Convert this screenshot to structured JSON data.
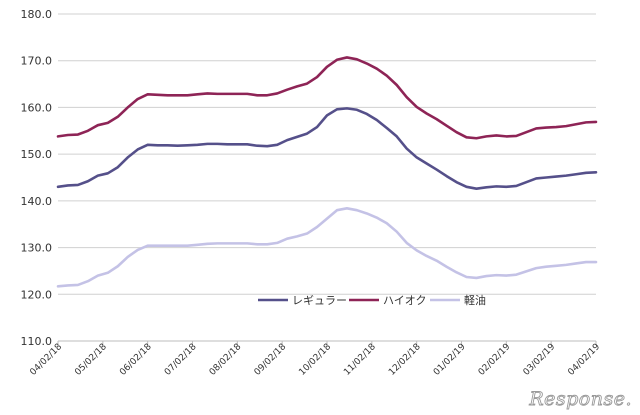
{
  "chart_data": {
    "type": "line",
    "title": "",
    "xlabel": "",
    "ylabel": "",
    "ylim": [
      110.0,
      180.0
    ],
    "yticks": [
      "110.0",
      "120.0",
      "130.0",
      "140.0",
      "150.0",
      "160.0",
      "170.0",
      "180.0"
    ],
    "xtick_labels": [
      "04/02/18",
      "05/02/18",
      "06/02/18",
      "07/02/18",
      "08/02/18",
      "09/02/18",
      "10/02/18",
      "11/02/18",
      "12/02/18",
      "01/02/19",
      "02/02/19",
      "03/02/19",
      "04/02/19"
    ],
    "grid": true,
    "legend_position": "bottom-center",
    "series": [
      {
        "name": "レギュラー",
        "color": "#55508a",
        "values": [
          143.0,
          143.3,
          143.4,
          144.2,
          145.4,
          145.9,
          147.2,
          149.3,
          151.0,
          152.0,
          151.9,
          151.9,
          151.8,
          151.9,
          152.0,
          152.2,
          152.2,
          152.1,
          152.1,
          152.1,
          151.8,
          151.7,
          152.0,
          153.0,
          153.7,
          154.4,
          155.8,
          158.3,
          159.6,
          159.8,
          159.5,
          158.6,
          157.3,
          155.6,
          153.8,
          151.2,
          149.3,
          148.0,
          146.7,
          145.3,
          144.0,
          143.0,
          142.6,
          142.9,
          143.1,
          143.0,
          143.2,
          144.0,
          144.8,
          145.0,
          145.2,
          145.4,
          145.7,
          146.0,
          146.1
        ]
      },
      {
        "name": "ハイオク",
        "color": "#8e2456",
        "values": [
          153.8,
          154.1,
          154.2,
          155.0,
          156.2,
          156.7,
          158.0,
          160.0,
          161.8,
          162.8,
          162.7,
          162.6,
          162.6,
          162.6,
          162.8,
          163.0,
          162.9,
          162.9,
          162.9,
          162.9,
          162.6,
          162.6,
          163.0,
          163.8,
          164.5,
          165.1,
          166.5,
          168.7,
          170.2,
          170.7,
          170.3,
          169.4,
          168.3,
          166.8,
          164.8,
          162.2,
          160.1,
          158.7,
          157.5,
          156.1,
          154.7,
          153.6,
          153.4,
          153.8,
          154.0,
          153.8,
          153.9,
          154.7,
          155.5,
          155.7,
          155.8,
          156.0,
          156.4,
          156.8,
          156.9
        ]
      },
      {
        "name": "軽油",
        "color": "#c4c2e6",
        "values": [
          121.7,
          121.9,
          122.0,
          122.8,
          124.0,
          124.6,
          126.0,
          128.0,
          129.5,
          130.4,
          130.4,
          130.4,
          130.4,
          130.4,
          130.6,
          130.8,
          130.9,
          130.9,
          130.9,
          130.9,
          130.7,
          130.7,
          131.0,
          131.9,
          132.4,
          133.0,
          134.4,
          136.2,
          138.0,
          138.4,
          138.0,
          137.3,
          136.4,
          135.2,
          133.4,
          131.0,
          129.4,
          128.2,
          127.2,
          125.9,
          124.7,
          123.7,
          123.5,
          123.9,
          124.1,
          124.0,
          124.2,
          124.9,
          125.6,
          125.9,
          126.1,
          126.3,
          126.6,
          126.9,
          126.9
        ]
      }
    ]
  },
  "watermark": "Response."
}
